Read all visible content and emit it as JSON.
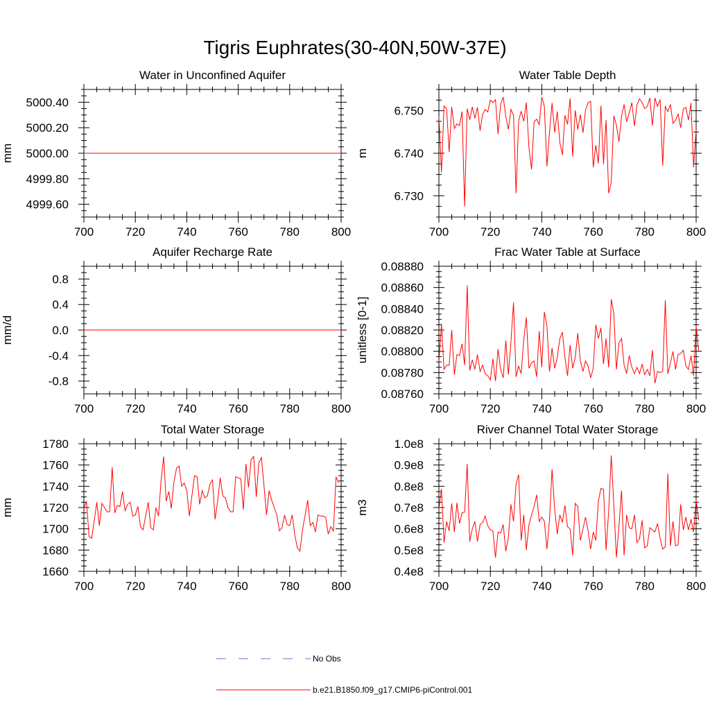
{
  "figure_title": "Tigris Euphrates(30-40N,50W-37E)",
  "legend": {
    "obs_label": "No Obs",
    "obs_color": "#6b72c9",
    "model_label": "b.e21.B1850.f09_g17.CMIP6-piControl.001",
    "model_color": "#ff0000"
  },
  "chart_data": [
    {
      "type": "line",
      "title": "Water in Unconfined Aquifer",
      "xlabel": "",
      "ylabel": "mm",
      "xlim": [
        700,
        800
      ],
      "ylim": [
        4999.5,
        5000.5
      ],
      "xticks": [
        700,
        720,
        740,
        760,
        780,
        800
      ],
      "yticks": [
        4999.6,
        4999.8,
        5000.0,
        5000.2,
        5000.4
      ],
      "ytick_labels": [
        "4999.60",
        "4999.80",
        "5000.00",
        "5000.20",
        "5000.40"
      ],
      "series": [
        {
          "name": "b.e21.B1850.f09_g17.CMIP6-piControl.001",
          "constant": 5000.0
        }
      ]
    },
    {
      "type": "line",
      "title": "Water Table Depth",
      "xlabel": "",
      "ylabel": "m",
      "xlim": [
        700,
        800
      ],
      "ylim": [
        6.725,
        6.755
      ],
      "xticks": [
        700,
        720,
        740,
        760,
        780,
        800
      ],
      "yticks": [
        6.73,
        6.74,
        6.75
      ],
      "ytick_labels": [
        "6.730",
        "6.740",
        "6.750"
      ],
      "series": [
        {
          "name": "b.e21.B1850.f09_g17.CMIP6-piControl.001",
          "values": [
            6.7487,
            6.7355,
            6.7511,
            6.7505,
            6.7403,
            6.7509,
            6.7458,
            6.7469,
            6.7465,
            6.7498,
            6.7275,
            6.7505,
            6.7479,
            6.7509,
            6.7482,
            6.7508,
            6.7453,
            6.7492,
            6.7503,
            6.7497,
            6.7525,
            6.7519,
            6.7526,
            6.7445,
            6.7515,
            6.7532,
            6.7486,
            6.7456,
            6.7503,
            6.7489,
            6.7306,
            6.7476,
            6.7499,
            6.7475,
            6.7519,
            6.7413,
            6.7362,
            6.7474,
            6.748,
            6.7467,
            6.7532,
            6.751,
            6.7369,
            6.7449,
            6.7518,
            6.7449,
            6.7498,
            6.7426,
            6.7396,
            6.7489,
            6.7468,
            6.7529,
            6.7392,
            6.7501,
            6.7456,
            6.7491,
            6.7448,
            6.7502,
            6.7519,
            6.7522,
            6.7367,
            6.7419,
            6.7376,
            6.7512,
            6.7374,
            6.7478,
            6.7306,
            6.7332,
            6.7488,
            6.7466,
            6.7427,
            6.7487,
            6.7515,
            6.7474,
            6.7495,
            6.7519,
            6.7464,
            6.7514,
            6.7528,
            6.7519,
            6.7505,
            6.751,
            6.753,
            6.7465,
            6.753,
            6.751,
            6.7526,
            6.7371,
            6.751,
            6.7498,
            6.7515,
            6.747,
            6.7478,
            6.7492,
            6.746,
            6.7504,
            6.7508,
            6.7478,
            6.7518,
            6.7367,
            6.7455
          ]
        }
      ]
    },
    {
      "type": "line",
      "title": "Aquifer Recharge Rate",
      "xlabel": "",
      "ylabel": "mm/d",
      "xlim": [
        700,
        800
      ],
      "ylim": [
        -1.0,
        1.0
      ],
      "xticks": [
        700,
        720,
        740,
        760,
        780,
        800
      ],
      "yticks": [
        -0.8,
        -0.4,
        0.0,
        0.4,
        0.8
      ],
      "ytick_labels": [
        "-0.8",
        "-0.4",
        "0.0",
        "0.4",
        "0.8"
      ],
      "series": [
        {
          "name": "b.e21.B1850.f09_g17.CMIP6-piControl.001",
          "constant": 0.0
        }
      ]
    },
    {
      "type": "line",
      "title": "Frac Water Table at Surface",
      "xlabel": "",
      "ylabel": "unitless [0-1]",
      "xlim": [
        700,
        800
      ],
      "ylim": [
        0.0876,
        0.0888
      ],
      "xticks": [
        700,
        720,
        740,
        760,
        780,
        800
      ],
      "yticks": [
        0.0876,
        0.0878,
        0.088,
        0.0882,
        0.0884,
        0.0886,
        0.0888
      ],
      "ytick_labels": [
        "0.08760",
        "0.08780",
        "0.08800",
        "0.08820",
        "0.08840",
        "0.08860",
        "0.08880"
      ],
      "series": [
        {
          "name": "b.e21.B1850.f09_g17.CMIP6-piControl.001",
          "values": [
            0.0879,
            0.08826,
            0.08783,
            0.08787,
            0.08787,
            0.0882,
            0.08778,
            0.08797,
            0.08796,
            0.08807,
            0.08787,
            0.08862,
            0.08782,
            0.08792,
            0.08783,
            0.08797,
            0.08781,
            0.08787,
            0.08779,
            0.08777,
            0.08773,
            0.08793,
            0.08772,
            0.08802,
            0.08783,
            0.08775,
            0.0881,
            0.08778,
            0.08809,
            0.08846,
            0.08776,
            0.08786,
            0.08779,
            0.08811,
            0.08832,
            0.08784,
            0.08789,
            0.08791,
            0.08776,
            0.08819,
            0.08785,
            0.08837,
            0.08824,
            0.08781,
            0.08803,
            0.08784,
            0.08794,
            0.08812,
            0.08818,
            0.08794,
            0.08777,
            0.08806,
            0.08784,
            0.08794,
            0.08817,
            0.08791,
            0.08781,
            0.08791,
            0.08786,
            0.08775,
            0.08784,
            0.08825,
            0.08812,
            0.08822,
            0.08788,
            0.08812,
            0.08785,
            0.08849,
            0.08835,
            0.08783,
            0.08808,
            0.08812,
            0.08787,
            0.08779,
            0.08796,
            0.08785,
            0.08779,
            0.08785,
            0.08779,
            0.08788,
            0.08778,
            0.08783,
            0.08777,
            0.08801,
            0.0877,
            0.08781,
            0.0878,
            0.08781,
            0.08848,
            0.08779,
            0.08789,
            0.088,
            0.08783,
            0.08797,
            0.08798,
            0.08801,
            0.08786,
            0.08783,
            0.08796,
            0.08777,
            0.08824,
            0.088
          ]
        }
      ]
    },
    {
      "type": "line",
      "title": "Total Water Storage",
      "xlabel": "",
      "ylabel": "mm",
      "xlim": [
        700,
        800
      ],
      "ylim": [
        1660,
        1780
      ],
      "xticks": [
        700,
        720,
        740,
        760,
        780,
        800
      ],
      "yticks": [
        1660,
        1680,
        1700,
        1720,
        1740,
        1760,
        1780
      ],
      "ytick_labels": [
        "1660",
        "1680",
        "1700",
        "1720",
        "1740",
        "1760",
        "1780"
      ],
      "series": [
        {
          "name": "b.e21.B1850.f09_g17.CMIP6-piControl.001",
          "values": [
            1719,
            1726,
            1693,
            1691,
            1707,
            1725,
            1703,
            1724,
            1720,
            1716,
            1716,
            1758,
            1715,
            1722,
            1721,
            1735,
            1717,
            1723,
            1725,
            1712,
            1713,
            1721,
            1702,
            1699,
            1712,
            1725,
            1701,
            1699,
            1720,
            1712,
            1745,
            1768,
            1726,
            1735,
            1719,
            1744,
            1757,
            1759,
            1740,
            1743,
            1736,
            1712,
            1731,
            1750,
            1749,
            1723,
            1736,
            1729,
            1731,
            1742,
            1746,
            1709,
            1726,
            1748,
            1731,
            1729,
            1720,
            1716,
            1716,
            1749,
            1748,
            1747,
            1718,
            1761,
            1739,
            1765,
            1768,
            1730,
            1762,
            1767,
            1741,
            1713,
            1736,
            1727,
            1720,
            1713,
            1698,
            1701,
            1713,
            1704,
            1703,
            1713,
            1694,
            1682,
            1679,
            1699,
            1713,
            1727,
            1703,
            1706,
            1697,
            1713,
            1712,
            1712,
            1711,
            1695,
            1702,
            1698,
            1749,
            1743
          ]
        }
      ]
    },
    {
      "type": "line",
      "title": "River Channel Total Water Storage",
      "xlabel": "",
      "ylabel": "m3",
      "xlim": [
        700,
        800
      ],
      "ylim": [
        40000000,
        100000000
      ],
      "xticks": [
        700,
        720,
        740,
        760,
        780,
        800
      ],
      "yticks": [
        40000000,
        50000000,
        60000000,
        70000000,
        80000000,
        90000000,
        100000000
      ],
      "ytick_labels": [
        "0.4e8",
        "0.5e8",
        "0.6e8",
        "0.7e8",
        "0.8e8",
        "0.9e8",
        "1.0e8"
      ],
      "series": [
        {
          "name": "b.e21.B1850.f09_g17.CMIP6-piControl.001",
          "values": [
            69000000,
            78800000,
            53500000,
            63500000,
            59000000,
            72000000,
            58500000,
            72200000,
            62500000,
            67500000,
            67800000,
            90500000,
            54000000,
            60000000,
            63500000,
            54000000,
            62000000,
            63000000,
            66000000,
            61500000,
            59500000,
            59000000,
            46500000,
            58500000,
            58000000,
            62000000,
            49500000,
            56000000,
            71500000,
            63500000,
            81000000,
            85500000,
            54500000,
            66500000,
            50000000,
            62000000,
            66500000,
            70500000,
            76000000,
            63500000,
            65500000,
            63500000,
            50500000,
            64000000,
            88000000,
            69000000,
            57500000,
            66500000,
            63000000,
            71000000,
            61000000,
            60000000,
            47500000,
            72000000,
            70500000,
            54500000,
            60000000,
            65500000,
            59000000,
            50500000,
            58500000,
            54500000,
            73000000,
            79000000,
            78500000,
            50000000,
            68500000,
            94500000,
            71000000,
            46500000,
            61500000,
            78000000,
            47500000,
            66500000,
            60500000,
            60000000,
            66500000,
            53500000,
            55500000,
            64000000,
            51000000,
            52000000,
            60500000,
            59500000,
            58500000,
            62500000,
            55500000,
            50500000,
            51500000,
            86000000,
            52000000,
            63500000,
            52000000,
            52500000,
            71500000,
            59500000,
            65500000,
            59500000,
            64500000,
            58500000,
            73500000,
            64000000
          ]
        }
      ]
    }
  ]
}
